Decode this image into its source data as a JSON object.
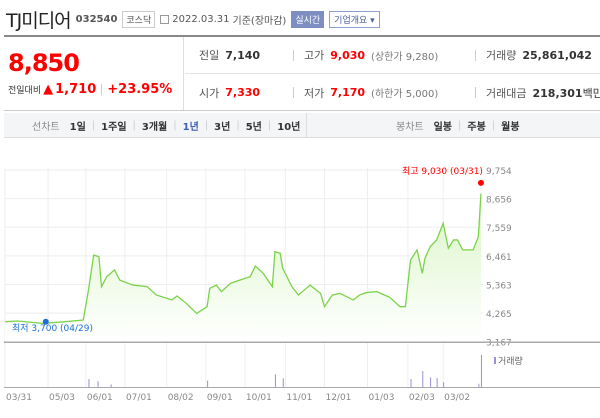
{
  "header": {
    "title": "TJ미디어",
    "code": "032540",
    "market": "코스닥",
    "date": "2022.03.31",
    "basis": "기준(장마감)",
    "realtime": "실시간",
    "company_info": "기업개요"
  },
  "quote": {
    "price": "8,850",
    "change_label": "전일대비",
    "change": "1,710",
    "change_pct": "+23.95%",
    "prev_label": "전일",
    "prev": "7,140",
    "high_label": "고가",
    "high": "9,030",
    "upper_limit": "(상한가 9,280)",
    "volume_label": "거래량",
    "volume": "25,861,042",
    "open_label": "시가",
    "open": "7,330",
    "low_label": "저가",
    "low": "7,170",
    "lower_limit": "(하한가 5,000)",
    "amount_label": "거래대금",
    "amount": "218,301",
    "amount_unit": "백만"
  },
  "tabs": {
    "line_label": "선차트",
    "line": [
      "1일",
      "1주일",
      "3개월",
      "1년",
      "3년",
      "5년",
      "10년"
    ],
    "active": "1년",
    "candle_label": "봉차트",
    "candle": [
      "일봉",
      "주봉",
      "월봉"
    ]
  },
  "colors": {
    "up": "#ff0000",
    "line": "#7bd34a",
    "fill": "#d9f5c6",
    "low": "#1e6fd9",
    "volume": "#9b8fd6"
  },
  "chart_data": {
    "type": "area",
    "ylim": [
      3167,
      9754
    ],
    "yticks": [
      "9,754",
      "8,656",
      "7,559",
      "6,461",
      "5,363",
      "4,265",
      "3,167"
    ],
    "xticks": [
      "03/31",
      "05/03",
      "06/01",
      "07/01",
      "08/02",
      "09/01",
      "10/01",
      "11/01",
      "12/01",
      "01/03",
      "02/03",
      "03/02"
    ],
    "xtick_dates": [
      "2021-03-31",
      "2021-05-03",
      "2021-06-01",
      "2021-07-01",
      "2021-08-02",
      "2021-09-01",
      "2021-10-01",
      "2021-11-01",
      "2021-12-01",
      "2022-01-03",
      "2022-02-03",
      "2022-03-02"
    ],
    "max_label": "최고 9,030 (03/31)",
    "max": {
      "date": "2022-03-31",
      "value": 9030
    },
    "min_label": "최저 3,700 (04/29)",
    "min": {
      "date": "2021-04-29",
      "value": 3700
    },
    "volume_legend": "거래량",
    "points": [
      [
        "2021-03-31",
        3934
      ],
      [
        "2021-04-10",
        3960
      ],
      [
        "2021-04-29",
        3870
      ],
      [
        "2021-05-15",
        3930
      ],
      [
        "2021-05-30",
        4000
      ],
      [
        "2021-06-03",
        5150
      ],
      [
        "2021-06-07",
        6490
      ],
      [
        "2021-06-11",
        6430
      ],
      [
        "2021-06-13",
        5280
      ],
      [
        "2021-06-17",
        5660
      ],
      [
        "2021-06-23",
        5920
      ],
      [
        "2021-06-27",
        5530
      ],
      [
        "2021-07-07",
        5340
      ],
      [
        "2021-07-18",
        5280
      ],
      [
        "2021-07-25",
        4960
      ],
      [
        "2021-08-06",
        4770
      ],
      [
        "2021-08-10",
        4920
      ],
      [
        "2021-08-17",
        4640
      ],
      [
        "2021-08-25",
        4250
      ],
      [
        "2021-09-02",
        4510
      ],
      [
        "2021-09-04",
        5210
      ],
      [
        "2021-09-09",
        5340
      ],
      [
        "2021-09-13",
        5090
      ],
      [
        "2021-09-20",
        5410
      ],
      [
        "2021-09-27",
        5530
      ],
      [
        "2021-10-05",
        5660
      ],
      [
        "2021-10-09",
        6070
      ],
      [
        "2021-10-15",
        5790
      ],
      [
        "2021-10-22",
        5280
      ],
      [
        "2021-10-24",
        6620
      ],
      [
        "2021-10-28",
        6560
      ],
      [
        "2021-10-30",
        5980
      ],
      [
        "2021-11-06",
        5280
      ],
      [
        "2021-11-11",
        4960
      ],
      [
        "2021-11-20",
        5340
      ],
      [
        "2021-11-28",
        5020
      ],
      [
        "2021-12-01",
        4510
      ],
      [
        "2021-12-07",
        4960
      ],
      [
        "2021-12-13",
        5020
      ],
      [
        "2021-12-23",
        4770
      ],
      [
        "2021-12-28",
        4960
      ],
      [
        "2022-01-02",
        5050
      ],
      [
        "2022-01-10",
        5090
      ],
      [
        "2022-01-20",
        4870
      ],
      [
        "2022-01-28",
        4510
      ],
      [
        "2022-02-01",
        4510
      ],
      [
        "2022-02-05",
        6300
      ],
      [
        "2022-02-10",
        6690
      ],
      [
        "2022-02-14",
        5790
      ],
      [
        "2022-02-16",
        6360
      ],
      [
        "2022-02-20",
        6810
      ],
      [
        "2022-02-25",
        7070
      ],
      [
        "2022-03-02",
        7710
      ],
      [
        "2022-03-06",
        6750
      ],
      [
        "2022-03-10",
        7070
      ],
      [
        "2022-03-13",
        7070
      ],
      [
        "2022-03-17",
        6690
      ],
      [
        "2022-03-25",
        6690
      ],
      [
        "2022-03-29",
        7200
      ],
      [
        "2022-03-31",
        8850
      ]
    ],
    "volume_pct": [
      [
        "2021-06-03",
        25
      ],
      [
        "2021-06-10",
        18
      ],
      [
        "2021-06-20",
        8
      ],
      [
        "2021-09-02",
        20
      ],
      [
        "2021-10-24",
        40
      ],
      [
        "2021-10-30",
        27
      ],
      [
        "2022-02-05",
        25
      ],
      [
        "2022-02-14",
        50
      ],
      [
        "2022-02-20",
        30
      ],
      [
        "2022-02-25",
        28
      ],
      [
        "2022-03-02",
        15
      ],
      [
        "2022-03-29",
        10
      ],
      [
        "2022-03-31",
        100
      ]
    ]
  }
}
